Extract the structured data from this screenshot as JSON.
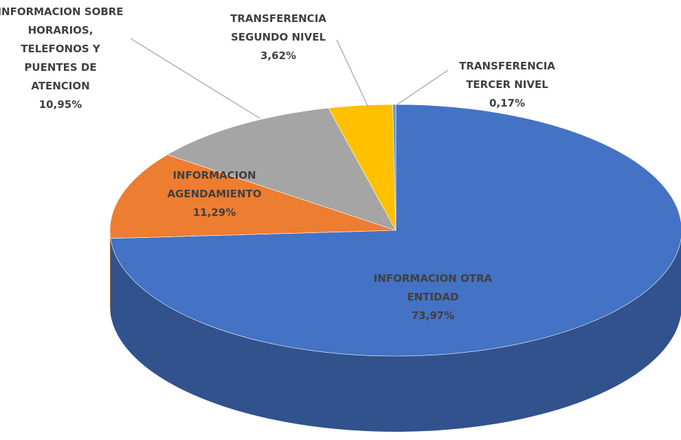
{
  "chart_data": {
    "type": "pie",
    "categories": [
      "INFORMACION OTRA ENTIDAD",
      "INFORMACION AGENDAMIENTO",
      "INFORMACION SOBRE HORARIOS, TELEFONOS Y PUENTES DE ATENCION",
      "TRANSFERENCIA SEGUNDO NIVEL",
      "TRANSFERENCIA TERCER NIVEL"
    ],
    "values": [
      73.97,
      11.29,
      10.95,
      3.62,
      0.17
    ],
    "value_labels": [
      "73,97%",
      "11,29%",
      "10,95%",
      "3,62%",
      "0,17%"
    ],
    "colors": [
      "#4472c4",
      "#ed7d31",
      "#a5a5a5",
      "#ffc000",
      "#5b9bd5"
    ]
  }
}
